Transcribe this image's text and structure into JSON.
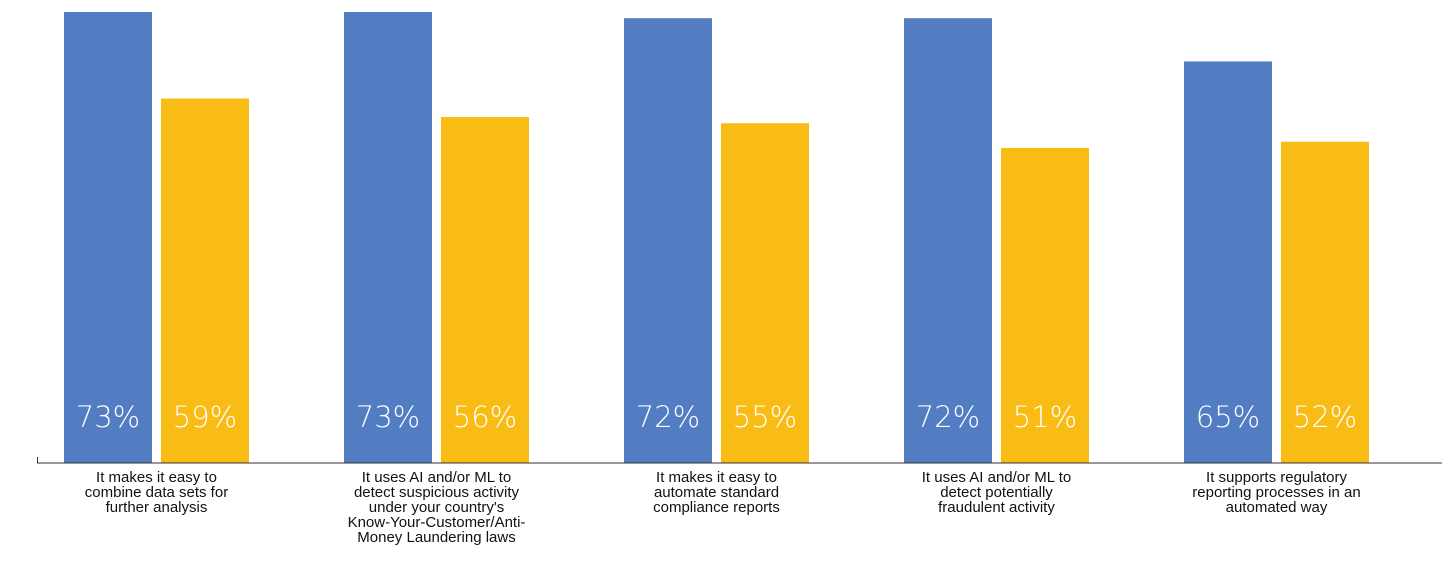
{
  "chart_data": {
    "type": "bar",
    "categories": [
      "It makes it easy to combine data sets for further analysis",
      "It uses AI and/or ML to detect suspicious activity under your country's Know-Your-Customer/Anti-Money Laundering laws",
      "It makes it easy to automate standard compliance reports",
      "It uses AI and/or ML to detect potentially fraudulent activity",
      "It supports regulatory reporting processes in an automated way"
    ],
    "category_lines": [
      [
        "It makes it easy to",
        "combine data sets for",
        "further analysis"
      ],
      [
        "It uses AI and/or ML to",
        "detect suspicious activity",
        "under your country's",
        "Know-Your-Customer/Anti-",
        "Money Laundering laws"
      ],
      [
        "It makes it easy to",
        "automate standard",
        "compliance reports"
      ],
      [
        "It uses AI and/or ML to",
        "detect potentially",
        "fraudulent activity"
      ],
      [
        "It supports regulatory",
        "reporting processes in an",
        "automated way"
      ]
    ],
    "series": [
      {
        "values": [
          73,
          73,
          72,
          72,
          65
        ],
        "labels": [
          "73%",
          "73%",
          "72%",
          "72%",
          "65%"
        ],
        "color": "#527DC2"
      },
      {
        "values": [
          59,
          56,
          55,
          51,
          52
        ],
        "labels": [
          "59%",
          "56%",
          "55%",
          "51%",
          "52%"
        ],
        "color": "#F8BC15"
      }
    ],
    "unit": "%",
    "ylim": [
      0,
      73
    ],
    "grid": false,
    "legend": "none",
    "label_color": "#ffffff",
    "axis_color": "#333333"
  }
}
